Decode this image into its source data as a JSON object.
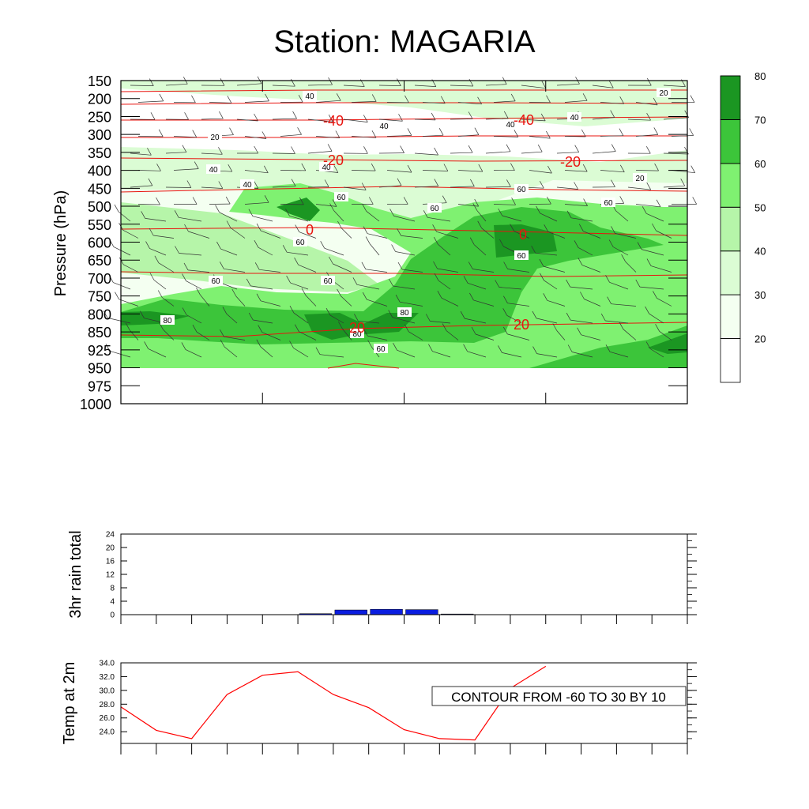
{
  "title": "Station: MAGARIA",
  "colors": {
    "band": [
      "#ffffff",
      "#f4fff1",
      "#dbfcd4",
      "#b6f5a9",
      "#7ff171",
      "#3cc53a",
      "#1b9622"
    ],
    "temperature_line": "#e8140f",
    "rain_bar": "#0a1de0",
    "temp2m_line": "#ff0000"
  },
  "chart_data": [
    {
      "type": "heatmap",
      "name": "sounding",
      "ylabel": "Pressure (hPa)",
      "y_tick_labels": [
        "150",
        "200",
        "250",
        "300",
        "350",
        "400",
        "450",
        "500",
        "550",
        "600",
        "650",
        "700",
        "750",
        "800",
        "850",
        "925",
        "950",
        "975",
        "1000"
      ],
      "x_tick_count": 5,
      "colorbar": {
        "levels": [
          20,
          30,
          40,
          50,
          60,
          70,
          80
        ],
        "labels": [
          "20",
          "30",
          "40",
          "50",
          "60",
          "70",
          "80"
        ]
      },
      "humidity_contour_labels": [
        "40",
        "40",
        "40",
        "40",
        "40",
        "40",
        "20",
        "20",
        "20",
        "40",
        "60",
        "60",
        "60",
        "60",
        "60",
        "60",
        "60",
        "80",
        "60",
        "60",
        "80",
        "80",
        "80",
        "60"
      ],
      "temperature_contours": [
        {
          "label": "-40",
          "level": -40
        },
        {
          "label": "-20",
          "level": -20
        },
        {
          "label": "0",
          "level": 0
        },
        {
          "label": "20",
          "level": 20
        }
      ],
      "temperature_labels": [
        "-40",
        "-40",
        "-20",
        "-20",
        "0",
        "0",
        "20",
        "20"
      ],
      "wind_barbs": true
    },
    {
      "type": "bar",
      "name": "rain",
      "ylabel": "3hr rain total",
      "ylim": [
        0,
        24
      ],
      "y_ticks": [
        "0",
        "4",
        "8",
        "12",
        "16",
        "20",
        "24"
      ],
      "x_tick_count": 17,
      "values": [
        0,
        0,
        0,
        0,
        0.05,
        0.3,
        1.4,
        1.6,
        1.5,
        0.2,
        0,
        0,
        0,
        0,
        0,
        0
      ]
    },
    {
      "type": "line",
      "name": "temp2m",
      "ylabel": "Temp at 2m",
      "ylim": [
        22.3,
        34.0
      ],
      "y_ticks": [
        "24.0",
        "26.0",
        "28.0",
        "30.0",
        "32.0",
        "34.0"
      ],
      "x_tick_count": 17,
      "values": [
        27.6,
        24.2,
        23.0,
        29.4,
        32.2,
        32.7,
        29.4,
        27.5,
        24.3,
        23.0,
        22.8,
        30.3,
        33.5
      ],
      "annotation": "CONTOUR FROM -60 TO 30 BY 10"
    }
  ]
}
